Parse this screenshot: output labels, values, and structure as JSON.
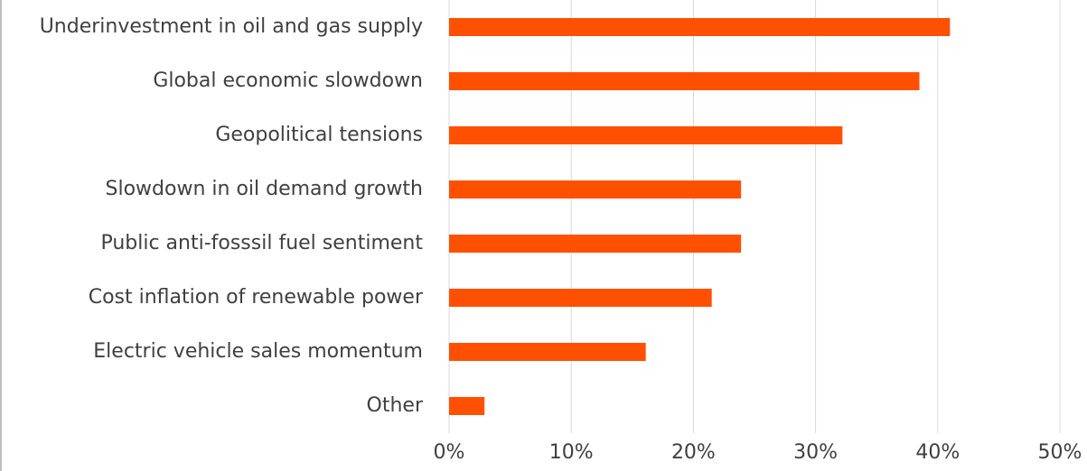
{
  "chart_data": {
    "type": "barh",
    "categories": [
      "Underinvestment in oil and gas supply",
      "Global economic slowdown",
      "Geopolitical tensions",
      "Slowdown in oil demand growth",
      "Public anti-fosssil fuel sentiment",
      "Cost inflation of renewable power",
      "Electric vehicle sales momentum",
      "Other"
    ],
    "values": [
      41,
      38.5,
      32.2,
      23.9,
      23.9,
      21.5,
      16.1,
      2.9
    ],
    "color": "#ff5000",
    "xlim": [
      0,
      50
    ],
    "xticks": [
      {
        "value": 0,
        "label": "0%"
      },
      {
        "value": 10,
        "label": "10%"
      },
      {
        "value": 20,
        "label": "20%"
      },
      {
        "value": 30,
        "label": "30%"
      },
      {
        "value": 40,
        "label": "40%"
      },
      {
        "value": 50,
        "label": "50%"
      }
    ],
    "grid": true
  }
}
